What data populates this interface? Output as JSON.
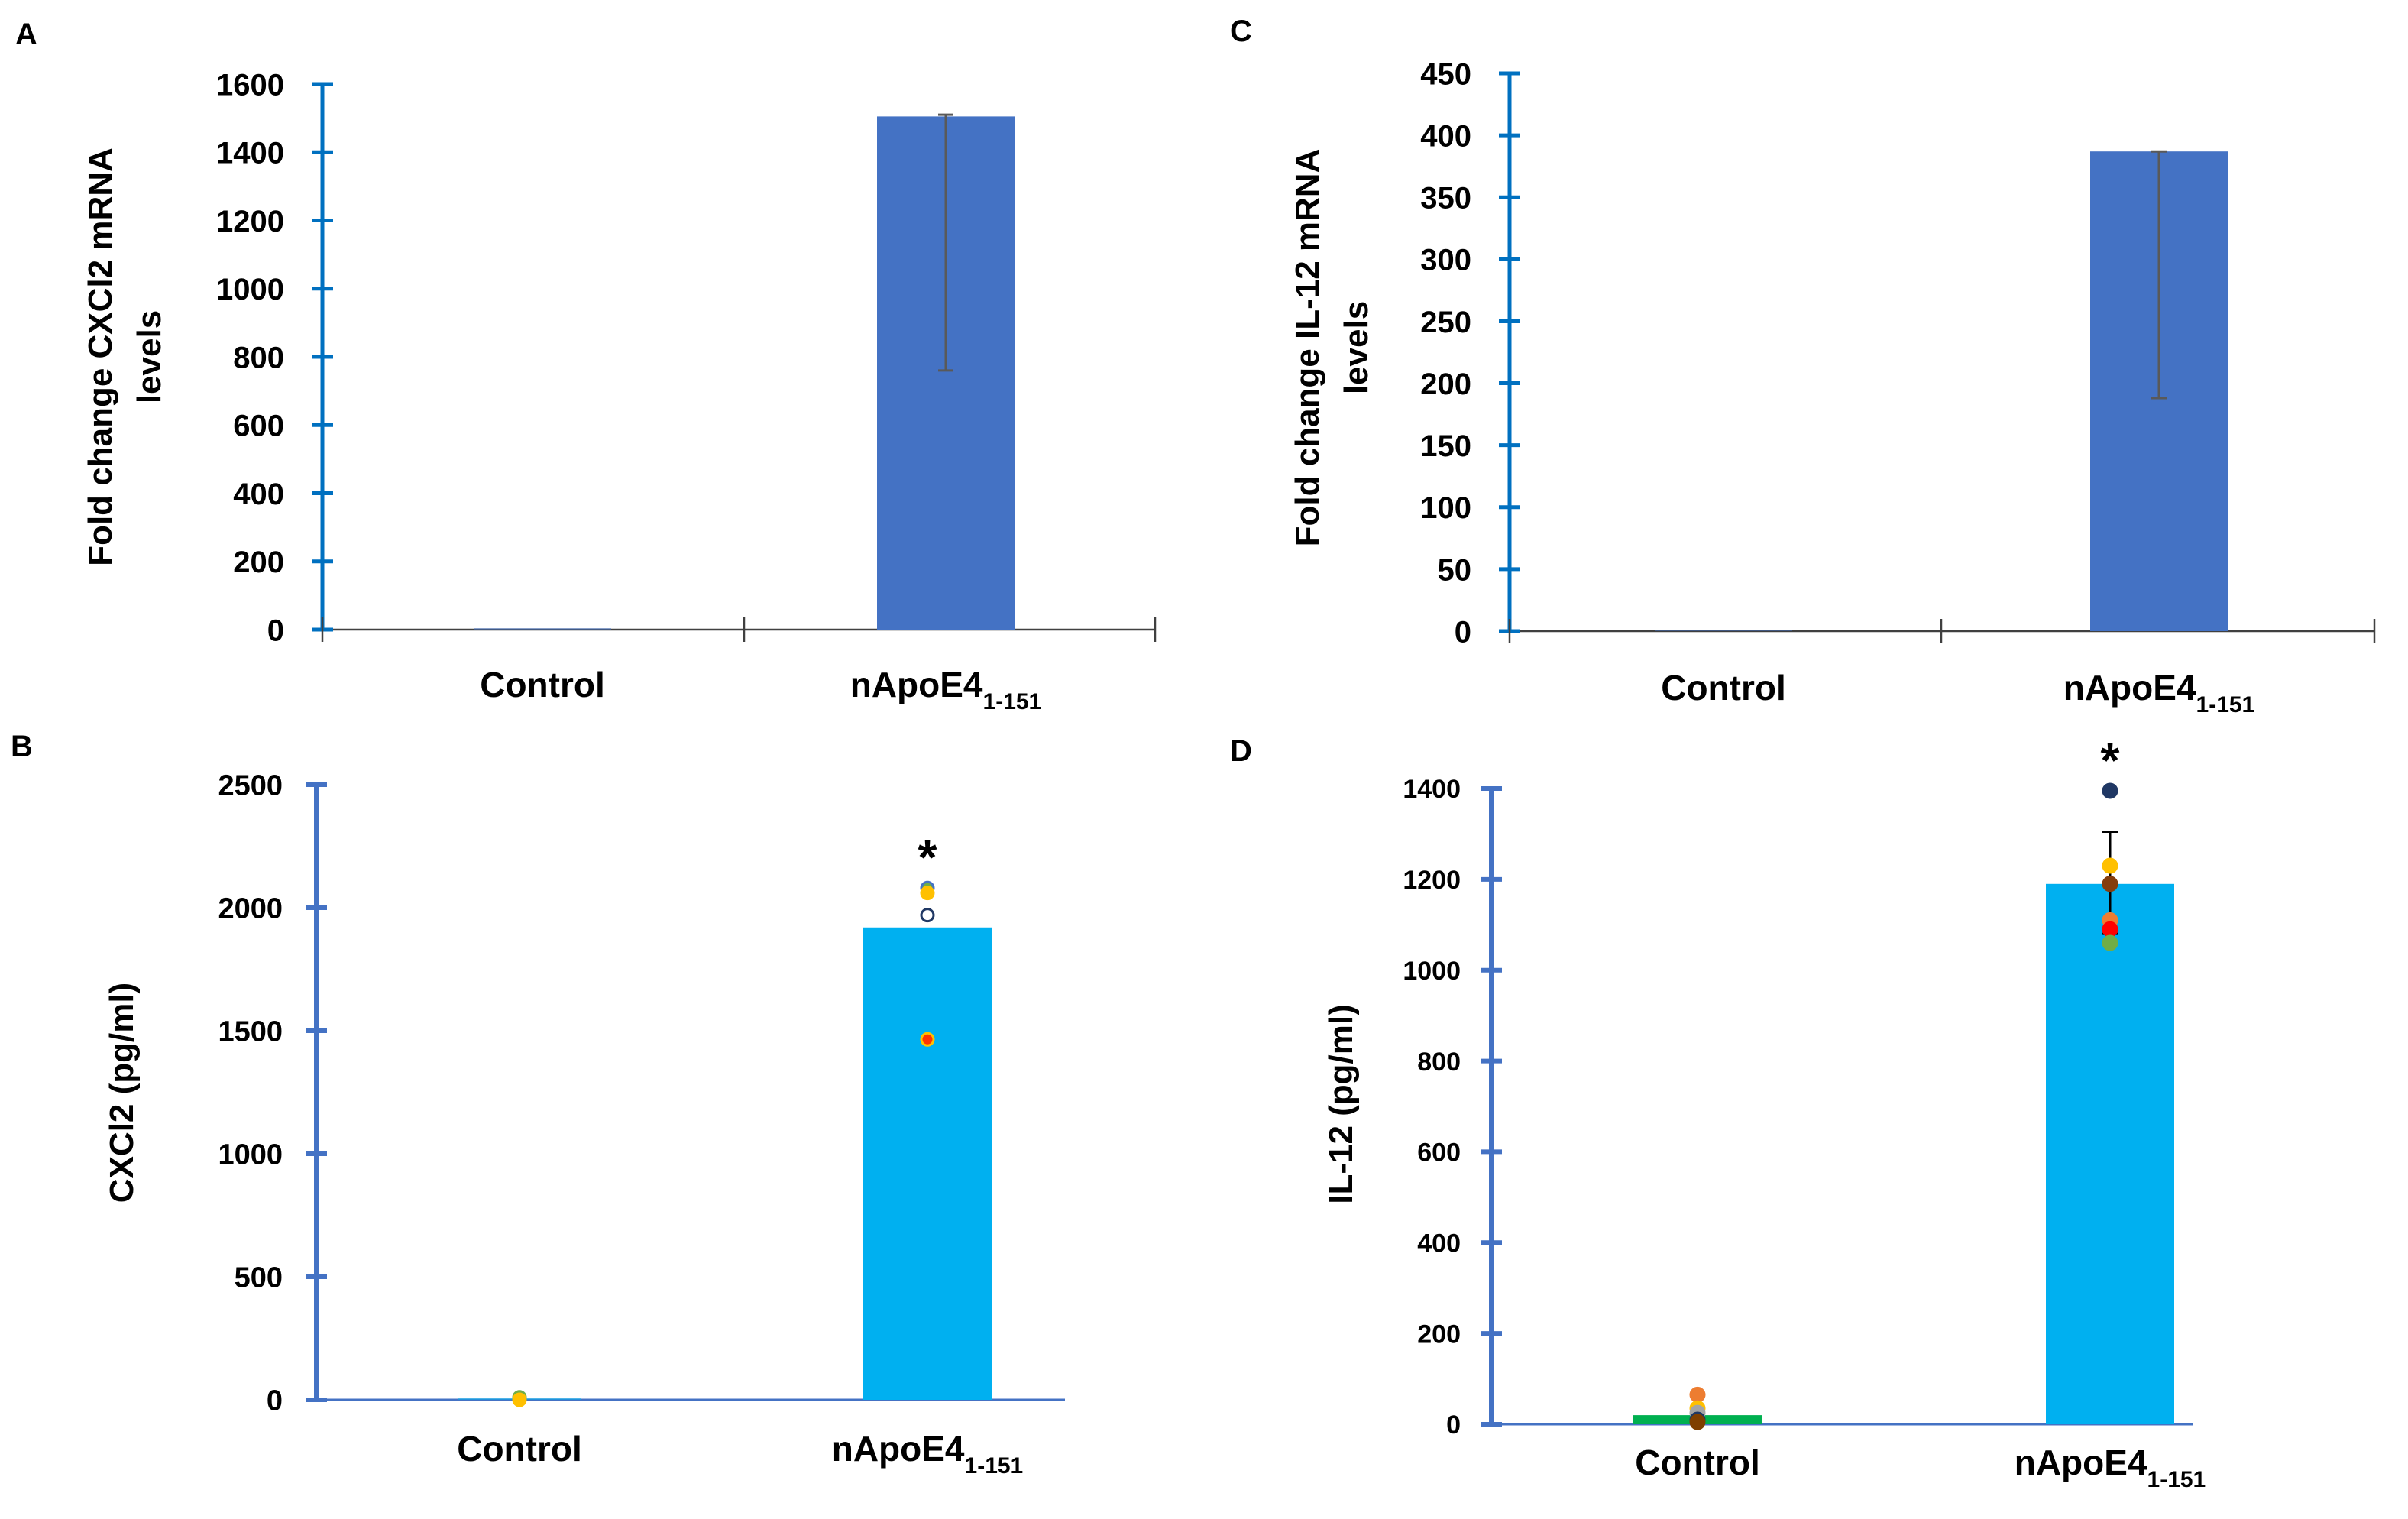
{
  "colors": {
    "axis_top": "#0070C0",
    "axis_bottom": "#4472C4",
    "bar_top": "#4472C4",
    "bar_bottom": "#00B0F0",
    "bar_control_d": "#00B050",
    "error_bar": "#595959",
    "error_bar_d": "#000000"
  },
  "chart_data": [
    {
      "panel": "A",
      "type": "bar",
      "categories": [
        "Control",
        "nApoE4"
      ],
      "category_subscripts": [
        "",
        "1-151"
      ],
      "values": [
        1,
        1505
      ],
      "error_low": [
        null,
        760
      ],
      "error_high": [
        null,
        1510
      ],
      "ylabel_lines": [
        "Fold change CXCl2 mRNA",
        "levels"
      ],
      "ylim": [
        0,
        1600
      ],
      "yticks": [
        0,
        200,
        400,
        600,
        800,
        1000,
        1200,
        1400,
        1600
      ],
      "points": []
    },
    {
      "panel": "B",
      "type": "bar",
      "categories": [
        "Control",
        "nApoE4"
      ],
      "category_subscripts": [
        "",
        "1-151"
      ],
      "values": [
        5,
        1920
      ],
      "error_low": [
        null,
        null
      ],
      "error_high": [
        null,
        null
      ],
      "ylabel_lines": [
        "CXCl2 (pg/ml)"
      ],
      "ylim": [
        0,
        2500
      ],
      "yticks": [
        0,
        500,
        1000,
        1500,
        2000,
        2500
      ],
      "significance": [
        null,
        "*"
      ],
      "points": [
        {
          "cat": 0,
          "value": 10,
          "color": "#70AD47",
          "edge": "#70AD47"
        },
        {
          "cat": 0,
          "value": 0,
          "color": "#FFC000",
          "edge": "#FFC000"
        },
        {
          "cat": 1,
          "value": 2080,
          "color": "#70AD47",
          "edge": "#4472C4"
        },
        {
          "cat": 1,
          "value": 2060,
          "color": "#FFC000",
          "edge": "#FFC000"
        },
        {
          "cat": 1,
          "value": 1970,
          "color": "#FFFFFF",
          "edge": "#203864"
        },
        {
          "cat": 1,
          "value": 1465,
          "color": "#FF3300",
          "edge": "#FFC000"
        }
      ]
    },
    {
      "panel": "C",
      "type": "bar",
      "categories": [
        "Control",
        "nApoE4"
      ],
      "category_subscripts": [
        "",
        "1-151"
      ],
      "values": [
        1,
        387
      ],
      "error_low": [
        null,
        188
      ],
      "error_high": [
        null,
        387
      ],
      "ylabel_lines": [
        "Fold change IL-12 mRNA",
        "levels"
      ],
      "ylim": [
        0,
        450
      ],
      "yticks": [
        0,
        50,
        100,
        150,
        200,
        250,
        300,
        350,
        400,
        450
      ],
      "points": []
    },
    {
      "panel": "D",
      "type": "bar",
      "categories": [
        "Control",
        "nApoE4"
      ],
      "category_subscripts": [
        "",
        "1-151"
      ],
      "values": [
        20,
        1190
      ],
      "error_low": [
        null,
        1080
      ],
      "error_high": [
        null,
        1305
      ],
      "ylabel_lines": [
        "IL-12 (pg/ml)"
      ],
      "ylim": [
        0,
        1400
      ],
      "yticks": [
        0,
        200,
        400,
        600,
        800,
        1000,
        1200,
        1400
      ],
      "significance": [
        null,
        "*"
      ],
      "points": [
        {
          "cat": 0,
          "value": 65,
          "color": "#ED7D31",
          "edge": "#ED7D31"
        },
        {
          "cat": 0,
          "value": 35,
          "color": "#FFC000",
          "edge": "#FFC000"
        },
        {
          "cat": 0,
          "value": 25,
          "color": "#A5A5A5",
          "edge": "#A5A5A5"
        },
        {
          "cat": 0,
          "value": 10,
          "color": "#203864",
          "edge": "#203864"
        },
        {
          "cat": 0,
          "value": 5,
          "color": "#7F3F00",
          "edge": "#7F3F00"
        },
        {
          "cat": 1,
          "value": 1395,
          "color": "#203864",
          "edge": "#203864"
        },
        {
          "cat": 1,
          "value": 1230,
          "color": "#FFC000",
          "edge": "#FFC000"
        },
        {
          "cat": 1,
          "value": 1190,
          "color": "#843C0C",
          "edge": "#843C0C"
        },
        {
          "cat": 1,
          "value": 1110,
          "color": "#ED7D31",
          "edge": "#ED7D31"
        },
        {
          "cat": 1,
          "value": 1090,
          "color": "#FF0000",
          "edge": "#FF0000"
        },
        {
          "cat": 1,
          "value": 1060,
          "color": "#70AD47",
          "edge": "#70AD47"
        }
      ]
    }
  ]
}
